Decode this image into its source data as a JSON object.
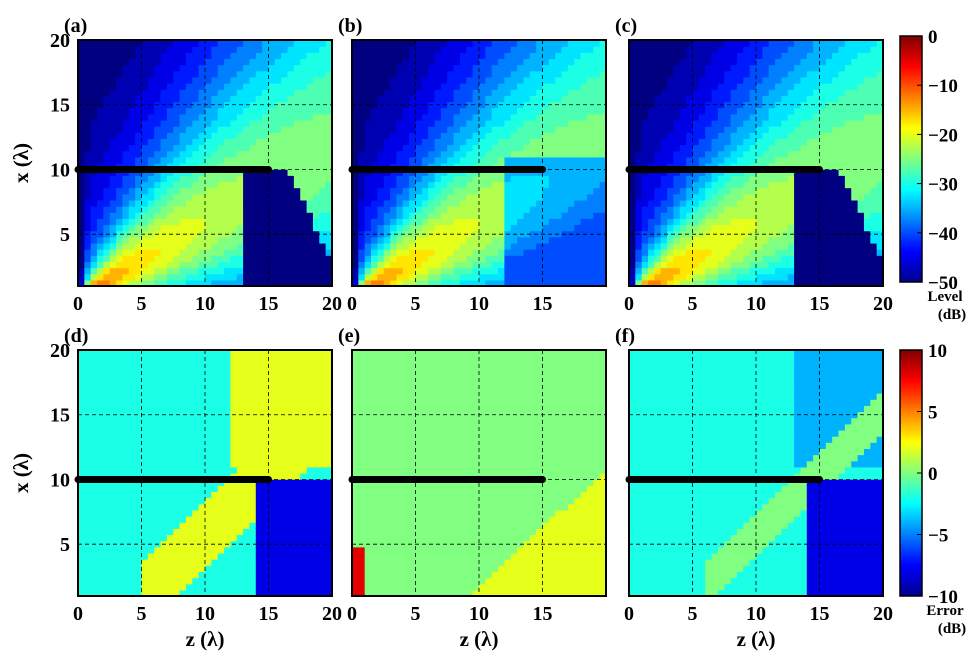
{
  "figure": {
    "panel_labels": [
      "(a)",
      "(b)",
      "(c)",
      "(d)",
      "(e)",
      "(f)"
    ],
    "x_axis_label": "z (λ)",
    "y_axis_label": "x (λ)",
    "colorbar_level": {
      "title_line1": "Level",
      "title_line2": "(dB)",
      "range": [
        -50,
        0
      ],
      "ticks": [
        "0",
        "−10",
        "−20",
        "−30",
        "−40",
        "−50"
      ],
      "colormap": "jet"
    },
    "colorbar_error": {
      "title_line1": "Error",
      "title_line2": "(dB)",
      "range": [
        -10,
        10
      ],
      "ticks": [
        "10",
        "5",
        "0",
        "−5",
        "−10"
      ],
      "colormap": "jet"
    }
  },
  "chart_data": [
    {
      "panel": "(a)",
      "type": "heatmap",
      "quantity": "level",
      "xlim": [
        0,
        20
      ],
      "ylim": [
        1,
        20
      ],
      "xticks": [
        0,
        5,
        10,
        15,
        20
      ],
      "yticks": [
        5,
        10,
        15,
        20
      ],
      "grid": "dashed",
      "barrier": {
        "x_level": 10,
        "z_from": 0,
        "z_to": 15
      },
      "color_range": [
        -50,
        0
      ]
    },
    {
      "panel": "(b)",
      "type": "heatmap",
      "quantity": "level",
      "xlim": [
        0,
        20
      ],
      "ylim": [
        1,
        20
      ],
      "xticks": [
        0,
        5,
        10,
        15
      ],
      "yticks": [],
      "grid": "dashed",
      "barrier": {
        "x_level": 10,
        "z_from": 0,
        "z_to": 15
      },
      "color_range": [
        -50,
        0
      ]
    },
    {
      "panel": "(c)",
      "type": "heatmap",
      "quantity": "level",
      "xlim": [
        0,
        20
      ],
      "ylim": [
        1,
        20
      ],
      "xticks": [
        0,
        5,
        10,
        15,
        20
      ],
      "yticks": [],
      "grid": "dashed",
      "barrier": {
        "x_level": 10,
        "z_from": 0,
        "z_to": 15
      },
      "color_range": [
        -50,
        0
      ]
    },
    {
      "panel": "(d)",
      "type": "heatmap",
      "quantity": "error",
      "xlim": [
        0,
        20
      ],
      "ylim": [
        1,
        20
      ],
      "xticks": [
        0,
        5,
        10,
        15,
        20
      ],
      "yticks": [
        5,
        10,
        15,
        20
      ],
      "grid": "dashed",
      "barrier": {
        "x_level": 10,
        "z_from": 0,
        "z_to": 15
      },
      "color_range": [
        -10,
        10
      ]
    },
    {
      "panel": "(e)",
      "type": "heatmap",
      "quantity": "error",
      "xlim": [
        0,
        20
      ],
      "ylim": [
        1,
        20
      ],
      "xticks": [
        0,
        5,
        10,
        15
      ],
      "yticks": [],
      "grid": "dashed",
      "barrier": {
        "x_level": 10,
        "z_from": 0,
        "z_to": 15
      },
      "color_range": [
        -10,
        10
      ]
    },
    {
      "panel": "(f)",
      "type": "heatmap",
      "quantity": "error",
      "xlim": [
        0,
        20
      ],
      "ylim": [
        1,
        20
      ],
      "xticks": [
        0,
        5,
        10,
        15,
        20
      ],
      "yticks": [],
      "grid": "dashed",
      "barrier": {
        "x_level": 10,
        "z_from": 0,
        "z_to": 15
      },
      "color_range": [
        -10,
        10
      ]
    }
  ]
}
